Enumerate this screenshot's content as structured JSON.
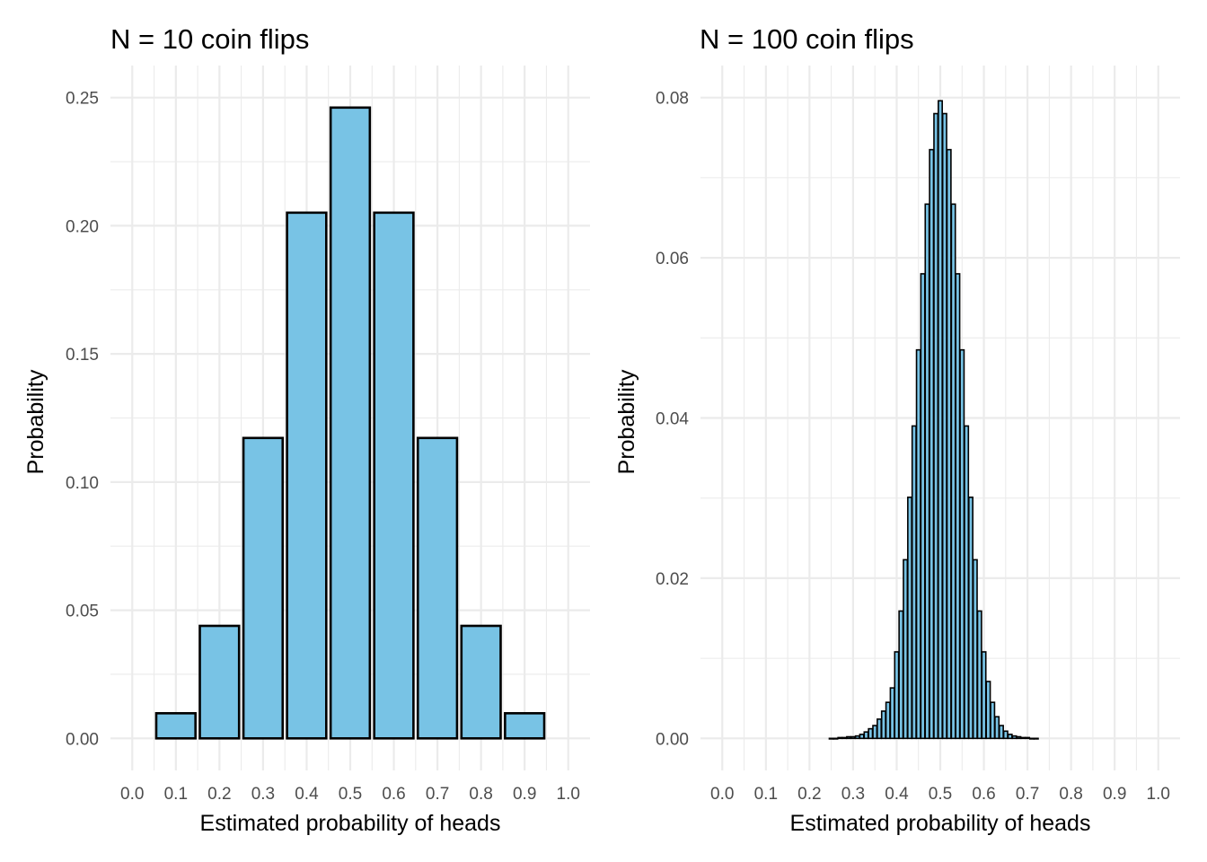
{
  "chart_data": [
    {
      "type": "bar",
      "title": "N = 10 coin flips",
      "xlabel": "Estimated probability of heads",
      "ylabel": "Probability",
      "xlim": [
        -0.05,
        1.05
      ],
      "ylim": [
        -0.0125,
        0.2625
      ],
      "x_ticks": [
        "0.0",
        "0.1",
        "0.2",
        "0.3",
        "0.4",
        "0.5",
        "0.6",
        "0.7",
        "0.8",
        "0.9",
        "1.0"
      ],
      "y_ticks": [
        "0.00",
        "0.05",
        "0.10",
        "0.15",
        "0.20",
        "0.25"
      ],
      "bar_width": 0.09,
      "grid": true,
      "x": [
        0.1,
        0.2,
        0.3,
        0.4,
        0.5,
        0.6,
        0.7,
        0.8,
        0.9
      ],
      "values": [
        0.0098,
        0.0439,
        0.1172,
        0.2051,
        0.2461,
        0.2051,
        0.1172,
        0.0439,
        0.0098
      ],
      "color": "#78c3e5"
    },
    {
      "type": "bar",
      "title": "N = 100 coin flips",
      "xlabel": "Estimated probability of heads",
      "ylabel": "Probability",
      "xlim": [
        -0.05,
        1.05
      ],
      "ylim": [
        -0.004,
        0.084
      ],
      "x_ticks": [
        "0.0",
        "0.1",
        "0.2",
        "0.3",
        "0.4",
        "0.5",
        "0.6",
        "0.7",
        "0.8",
        "0.9",
        "1.0"
      ],
      "y_ticks": [
        "0.00",
        "0.02",
        "0.04",
        "0.06",
        "0.08"
      ],
      "bar_width": 0.009,
      "grid": true,
      "x": [
        0.25,
        0.26,
        0.27,
        0.28,
        0.29,
        0.3,
        0.31,
        0.32,
        0.33,
        0.34,
        0.35,
        0.36,
        0.37,
        0.38,
        0.39,
        0.4,
        0.41,
        0.42,
        0.43,
        0.44,
        0.45,
        0.46,
        0.47,
        0.48,
        0.49,
        0.5,
        0.51,
        0.52,
        0.53,
        0.54,
        0.55,
        0.56,
        0.57,
        0.58,
        0.59,
        0.6,
        0.61,
        0.62,
        0.63,
        0.64,
        0.65,
        0.66,
        0.67,
        0.68,
        0.69,
        0.7,
        0.71,
        0.72
      ],
      "values": [
        0.0,
        0.0,
        0.0001,
        0.0001,
        0.0002,
        0.0002,
        0.0003,
        0.0005,
        0.0008,
        0.0012,
        0.0016,
        0.0024,
        0.0034,
        0.0045,
        0.0063,
        0.0108,
        0.0159,
        0.0223,
        0.0301,
        0.039,
        0.0485,
        0.058,
        0.0667,
        0.0735,
        0.078,
        0.0796,
        0.078,
        0.0735,
        0.0667,
        0.058,
        0.0485,
        0.039,
        0.0301,
        0.0223,
        0.0159,
        0.0108,
        0.0071,
        0.0045,
        0.0027,
        0.0016,
        0.0009,
        0.0005,
        0.0003,
        0.0002,
        0.0001,
        0.0001,
        0.0,
        0.0
      ],
      "color": "#78c3e5"
    }
  ]
}
